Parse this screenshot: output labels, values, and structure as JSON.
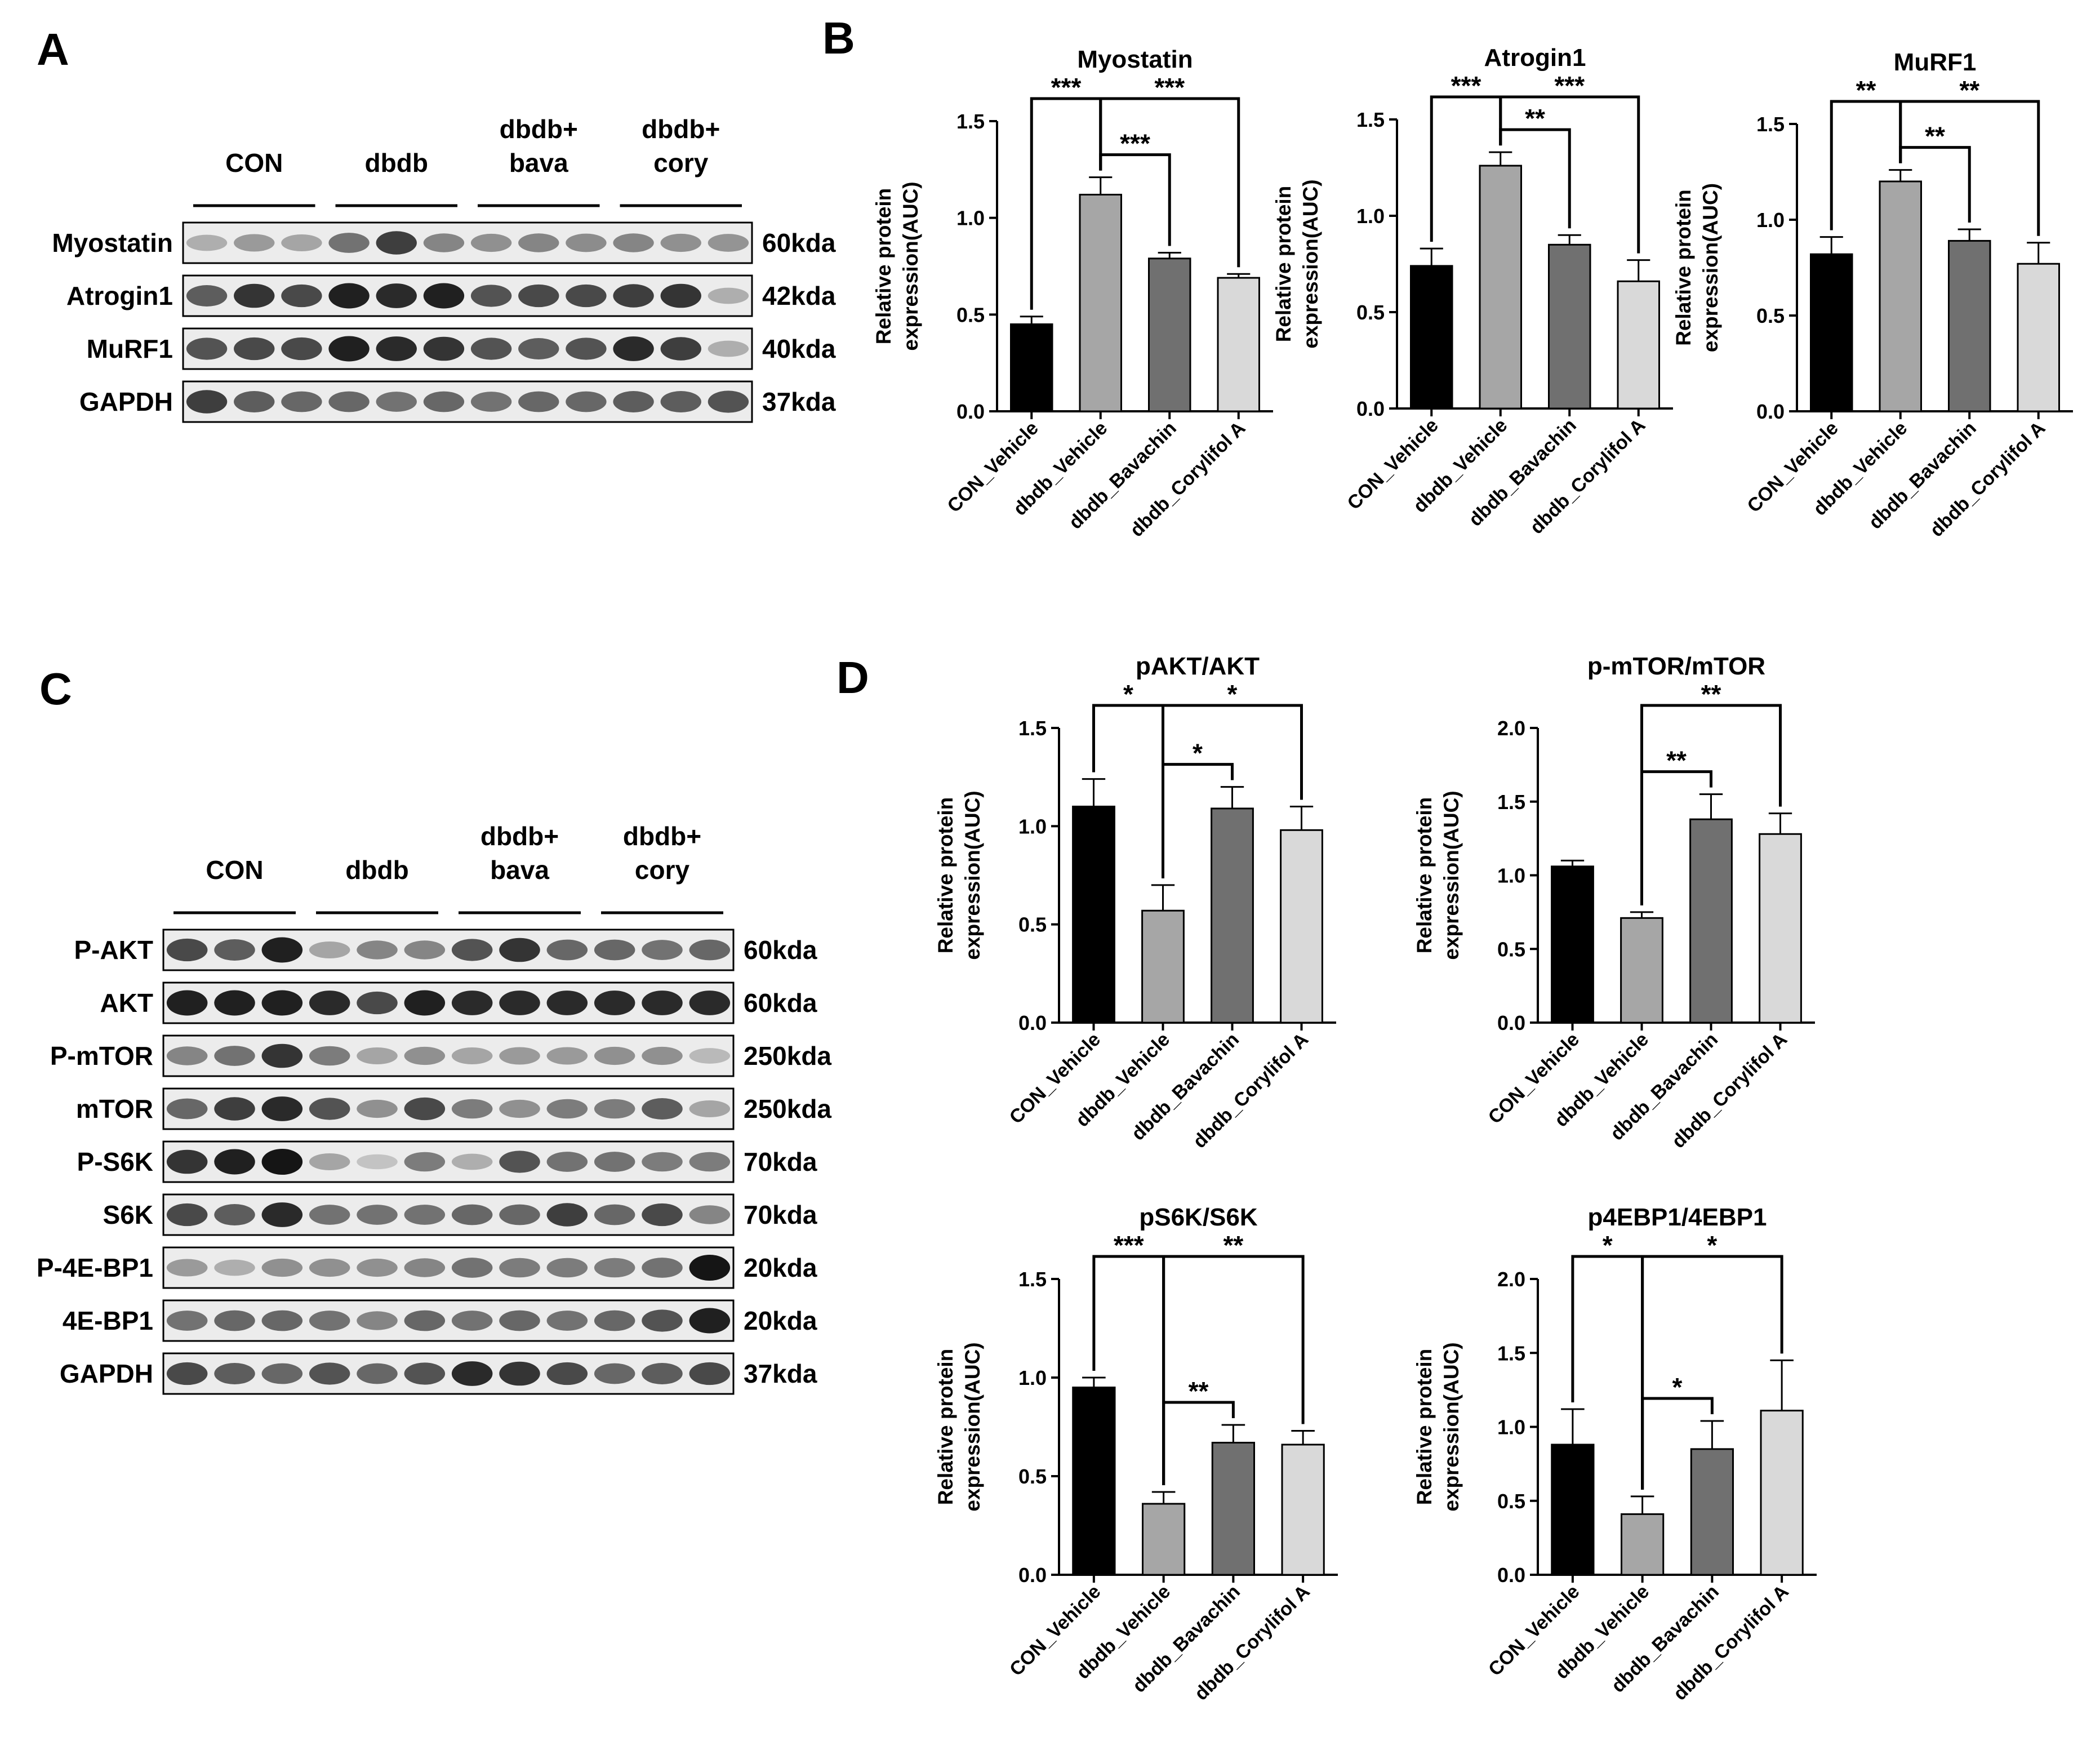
{
  "panels": {
    "A": "A",
    "B": "B",
    "C": "C",
    "D": "D"
  },
  "blot_groups": {
    "A": [
      {
        "line1": "CON",
        "line2": ""
      },
      {
        "line1": "dbdb",
        "line2": ""
      },
      {
        "line1": "dbdb+",
        "line2": "bava"
      },
      {
        "line1": "dbdb+",
        "line2": "cory"
      }
    ],
    "C": [
      {
        "line1": "CON",
        "line2": ""
      },
      {
        "line1": "dbdb",
        "line2": ""
      },
      {
        "line1": "dbdb+",
        "line2": "bava"
      },
      {
        "line1": "dbdb+",
        "line2": "cory"
      }
    ]
  },
  "blots": {
    "A": [
      {
        "name": "Myostatin",
        "size": "60kda",
        "intensity": [
          0.25,
          0.35,
          0.3,
          0.55,
          0.8,
          0.45,
          0.4,
          0.45,
          0.42,
          0.45,
          0.4,
          0.38
        ]
      },
      {
        "name": "Atrogin1",
        "size": "42kda",
        "intensity": [
          0.65,
          0.85,
          0.75,
          0.95,
          0.9,
          0.95,
          0.7,
          0.75,
          0.75,
          0.8,
          0.85,
          0.25
        ]
      },
      {
        "name": "MuRF1",
        "size": "40kda",
        "intensity": [
          0.7,
          0.75,
          0.75,
          0.95,
          0.9,
          0.85,
          0.7,
          0.65,
          0.7,
          0.9,
          0.8,
          0.25
        ]
      },
      {
        "name": "GAPDH",
        "size": "37kda",
        "intensity": [
          0.8,
          0.65,
          0.6,
          0.6,
          0.55,
          0.6,
          0.55,
          0.6,
          0.6,
          0.65,
          0.65,
          0.7
        ]
      }
    ],
    "C": [
      {
        "name": "P-AKT",
        "size": "60kda",
        "intensity": [
          0.75,
          0.65,
          0.95,
          0.3,
          0.45,
          0.45,
          0.7,
          0.85,
          0.6,
          0.6,
          0.55,
          0.6
        ]
      },
      {
        "name": "AKT",
        "size": "60kda",
        "intensity": [
          0.95,
          0.95,
          0.95,
          0.9,
          0.75,
          0.95,
          0.9,
          0.9,
          0.9,
          0.9,
          0.9,
          0.9
        ]
      },
      {
        "name": "P-mTOR",
        "size": "250kda",
        "intensity": [
          0.45,
          0.55,
          0.85,
          0.5,
          0.3,
          0.4,
          0.3,
          0.35,
          0.35,
          0.4,
          0.4,
          0.2
        ]
      },
      {
        "name": "mTOR",
        "size": "250kda",
        "intensity": [
          0.6,
          0.8,
          0.9,
          0.7,
          0.4,
          0.75,
          0.5,
          0.4,
          0.5,
          0.5,
          0.65,
          0.3
        ]
      },
      {
        "name": "P-S6K",
        "size": "70kda",
        "intensity": [
          0.85,
          0.95,
          1.0,
          0.3,
          0.15,
          0.5,
          0.25,
          0.7,
          0.55,
          0.55,
          0.5,
          0.5
        ]
      },
      {
        "name": "S6K",
        "size": "70kda",
        "intensity": [
          0.75,
          0.65,
          0.9,
          0.55,
          0.55,
          0.55,
          0.6,
          0.6,
          0.8,
          0.6,
          0.75,
          0.45
        ]
      },
      {
        "name": "P-4E-BP1",
        "size": "20kda",
        "intensity": [
          0.35,
          0.25,
          0.4,
          0.4,
          0.4,
          0.45,
          0.55,
          0.5,
          0.5,
          0.5,
          0.55,
          1.0
        ]
      },
      {
        "name": "4E-BP1",
        "size": "20kda",
        "intensity": [
          0.55,
          0.6,
          0.6,
          0.55,
          0.45,
          0.6,
          0.55,
          0.6,
          0.55,
          0.6,
          0.7,
          0.95
        ]
      },
      {
        "name": "GAPDH",
        "size": "37kda",
        "intensity": [
          0.75,
          0.65,
          0.6,
          0.7,
          0.6,
          0.7,
          0.9,
          0.85,
          0.75,
          0.6,
          0.65,
          0.75
        ]
      }
    ]
  },
  "chart_data": [
    {
      "type": "bar",
      "panel": "B",
      "title": "Myostatin",
      "ylabel": [
        "Relative protein",
        "expression(AUC)"
      ],
      "categories": [
        "CON_Vehicle",
        "dbdb_Vehicle",
        "dbdb_Bavachin",
        "dbdb_Corylifol A"
      ],
      "values": [
        0.45,
        1.12,
        0.79,
        0.69
      ],
      "errors": [
        0.04,
        0.09,
        0.03,
        0.02
      ],
      "ylim": [
        0,
        1.5
      ],
      "yticks": [
        "0.0",
        "0.5",
        "1.0",
        "1.5"
      ],
      "colors": [
        "#000000",
        "#a6a6a6",
        "#707070",
        "#d9d9d9"
      ],
      "significance": [
        {
          "from": 0,
          "to": 1,
          "label": "***",
          "level": 3
        },
        {
          "from": 1,
          "to": 2,
          "label": "***",
          "level": 1
        },
        {
          "from": 1,
          "to": 3,
          "label": "***",
          "level": 3
        }
      ]
    },
    {
      "type": "bar",
      "panel": "B",
      "title": "Atrogin1",
      "ylabel": [
        "Relative protein",
        "expression(AUC)"
      ],
      "categories": [
        "CON_Vehicle",
        "dbdb_Vehicle",
        "dbdb_Bavachin",
        "dbdb_Corylifol A"
      ],
      "values": [
        0.74,
        1.26,
        0.85,
        0.66
      ],
      "errors": [
        0.09,
        0.07,
        0.05,
        0.11
      ],
      "ylim": [
        0,
        1.5
      ],
      "yticks": [
        "0.0",
        "0.5",
        "1.0",
        "1.5"
      ],
      "colors": [
        "#000000",
        "#a6a6a6",
        "#707070",
        "#d9d9d9"
      ],
      "significance": [
        {
          "from": 0,
          "to": 1,
          "label": "***",
          "level": 3
        },
        {
          "from": 1,
          "to": 2,
          "label": "**",
          "level": 1
        },
        {
          "from": 1,
          "to": 3,
          "label": "***",
          "level": 3
        }
      ]
    },
    {
      "type": "bar",
      "panel": "B",
      "title": "MuRF1",
      "ylabel": [
        "Relative protein",
        "expression(AUC)"
      ],
      "categories": [
        "CON_Vehicle",
        "dbdb_Vehicle",
        "dbdb_Bavachin",
        "dbdb_Corylifol A"
      ],
      "values": [
        0.82,
        1.2,
        0.89,
        0.77
      ],
      "errors": [
        0.09,
        0.06,
        0.06,
        0.11
      ],
      "ylim": [
        0,
        1.5
      ],
      "yticks": [
        "0.0",
        "0.5",
        "1.0",
        "1.5"
      ],
      "colors": [
        "#000000",
        "#a6a6a6",
        "#707070",
        "#d9d9d9"
      ],
      "significance": [
        {
          "from": 0,
          "to": 1,
          "label": "**",
          "level": 3
        },
        {
          "from": 1,
          "to": 2,
          "label": "**",
          "level": 1
        },
        {
          "from": 1,
          "to": 3,
          "label": "**",
          "level": 3
        }
      ]
    },
    {
      "type": "bar",
      "panel": "D",
      "title": "pAKT/AKT",
      "ylabel": [
        "Relative protein",
        "expression(AUC)"
      ],
      "categories": [
        "CON_Vehicle",
        "dbdb_Vehicle",
        "dbdb_Bavachin",
        "dbdb_Corylifol A"
      ],
      "values": [
        1.1,
        0.57,
        1.09,
        0.98
      ],
      "errors": [
        0.14,
        0.13,
        0.11,
        0.12
      ],
      "ylim": [
        0,
        1.5
      ],
      "yticks": [
        "0.0",
        "0.5",
        "1.0",
        "1.5"
      ],
      "colors": [
        "#000000",
        "#a6a6a6",
        "#707070",
        "#d9d9d9"
      ],
      "significance": [
        {
          "from": 0,
          "to": 1,
          "label": "*",
          "level": 3
        },
        {
          "from": 1,
          "to": 2,
          "label": "*",
          "level": 1
        },
        {
          "from": 1,
          "to": 3,
          "label": "*",
          "level": 3
        }
      ]
    },
    {
      "type": "bar",
      "panel": "D",
      "title": "p-mTOR/mTOR",
      "ylabel": [
        "Relative protein",
        "expression(AUC)"
      ],
      "categories": [
        "CON_Vehicle",
        "dbdb_Vehicle",
        "dbdb_Bavachin",
        "dbdb_Corylifol A"
      ],
      "values": [
        1.06,
        0.71,
        1.38,
        1.28
      ],
      "errors": [
        0.04,
        0.04,
        0.17,
        0.14
      ],
      "ylim": [
        0,
        2.0
      ],
      "yticks": [
        "0.0",
        "0.5",
        "1.0",
        "1.5",
        "2.0"
      ],
      "colors": [
        "#000000",
        "#a6a6a6",
        "#707070",
        "#d9d9d9"
      ],
      "significance": [
        {
          "from": 1,
          "to": 2,
          "label": "**",
          "level": 1
        },
        {
          "from": 1,
          "to": 3,
          "label": "**",
          "level": 3
        }
      ]
    },
    {
      "type": "bar",
      "panel": "D",
      "title": "pS6K/S6K",
      "ylabel": [
        "Relative protein",
        "expression(AUC)"
      ],
      "categories": [
        "CON_Vehicle",
        "dbdb_Vehicle",
        "dbdb_Bavachin",
        "dbdb_Corylifol A"
      ],
      "values": [
        0.95,
        0.36,
        0.67,
        0.66
      ],
      "errors": [
        0.05,
        0.06,
        0.09,
        0.07
      ],
      "ylim": [
        0,
        1.5
      ],
      "yticks": [
        "0.0",
        "0.5",
        "1.0",
        "1.5"
      ],
      "colors": [
        "#000000",
        "#a6a6a6",
        "#707070",
        "#d9d9d9"
      ],
      "significance": [
        {
          "from": 0,
          "to": 1,
          "label": "***",
          "level": 3
        },
        {
          "from": 1,
          "to": 2,
          "label": "**",
          "level": 1
        },
        {
          "from": 1,
          "to": 3,
          "label": "**",
          "level": 3
        }
      ]
    },
    {
      "type": "bar",
      "panel": "D",
      "title": "p4EBP1/4EBP1",
      "ylabel": [
        "Relative protein",
        "expression(AUC)"
      ],
      "categories": [
        "CON_Vehicle",
        "dbdb_Vehicle",
        "dbdb_Bavachin",
        "dbdb_Corylifol A"
      ],
      "values": [
        0.88,
        0.41,
        0.85,
        1.11
      ],
      "errors": [
        0.24,
        0.12,
        0.19,
        0.34
      ],
      "ylim": [
        0,
        2.0
      ],
      "yticks": [
        "0.0",
        "0.5",
        "1.0",
        "1.5",
        "2.0"
      ],
      "colors": [
        "#000000",
        "#a6a6a6",
        "#707070",
        "#d9d9d9"
      ],
      "significance": [
        {
          "from": 0,
          "to": 1,
          "label": "*",
          "level": 3
        },
        {
          "from": 1,
          "to": 2,
          "label": "*",
          "level": 1
        },
        {
          "from": 1,
          "to": 3,
          "label": "*",
          "level": 3
        }
      ]
    }
  ]
}
